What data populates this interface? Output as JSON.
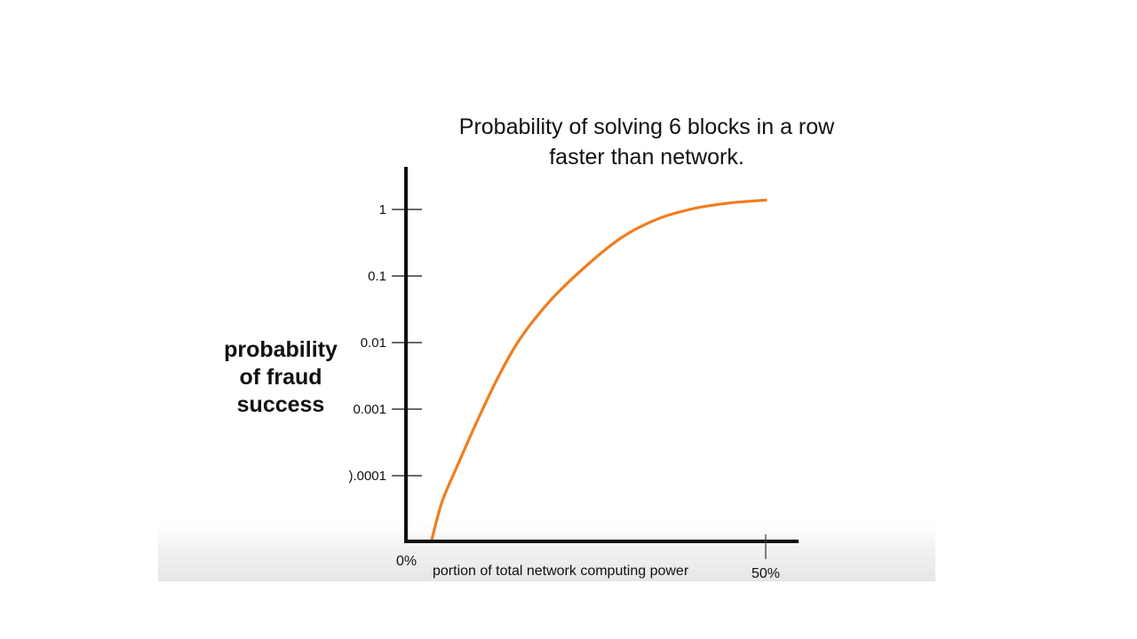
{
  "chart_data": {
    "type": "line",
    "title": [
      "Probability of solving 6 blocks in a row",
      "faster than network."
    ],
    "ylabel": [
      "probability",
      "of fraud",
      "success"
    ],
    "xlabel": "portion of total network computing power",
    "yscale": "log",
    "y_ticks": [
      "1",
      "0.1",
      "0.01",
      "0.001",
      ").0001"
    ],
    "y_tick_values": [
      1,
      0.1,
      0.01,
      0.001,
      0.0001
    ],
    "x_tick_labels": {
      "start": "0%",
      "end": "50%"
    },
    "xlim": [
      0,
      50
    ],
    "grid": false,
    "colors": {
      "series": "#f07d1e",
      "axis": "#111111"
    },
    "series": [
      {
        "x": [
          3.5,
          5,
          7,
          10,
          13,
          16,
          20,
          25,
          30,
          35,
          40,
          45,
          50
        ],
        "y": [
          1e-05,
          4e-05,
          0.00013,
          0.0007,
          0.0033,
          0.012,
          0.042,
          0.14,
          0.38,
          0.72,
          1.03,
          1.25,
          1.38
        ]
      }
    ]
  }
}
